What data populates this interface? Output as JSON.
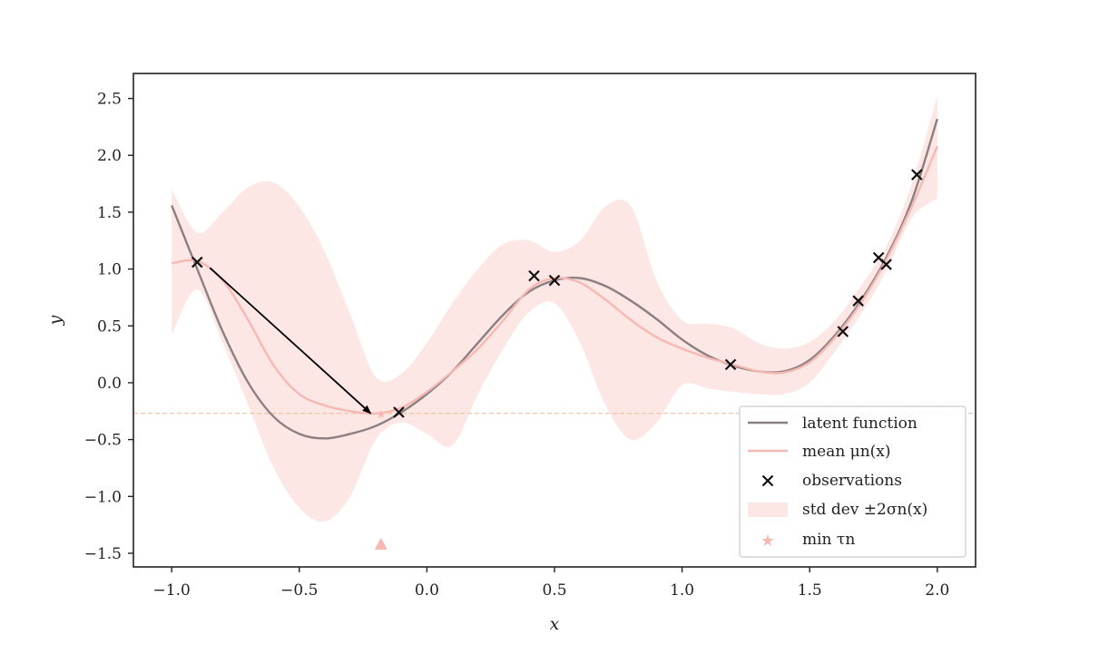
{
  "chart_data": {
    "type": "line",
    "title": "",
    "xlabel": "x",
    "ylabel": "y",
    "xlim": [
      -1.15,
      2.15
    ],
    "ylim": [
      -1.62,
      2.72
    ],
    "grid": false,
    "legend_position": "bottom-right",
    "x_ticks": [
      "−1.0",
      "−0.5",
      "0.0",
      "0.5",
      "1.0",
      "1.5",
      "2.0"
    ],
    "x_tick_values": [
      -1.0,
      -0.5,
      0.0,
      0.5,
      1.0,
      1.5,
      2.0
    ],
    "y_ticks": [
      "2.5",
      "2.0",
      "1.5",
      "1.0",
      "0.5",
      "0.0",
      "−0.5",
      "−1.0",
      "−1.5"
    ],
    "y_tick_values": [
      2.5,
      2.0,
      1.5,
      1.0,
      0.5,
      0.0,
      -0.5,
      -1.0,
      -1.5
    ],
    "x": [
      -1.0,
      -0.9,
      -0.8,
      -0.7,
      -0.6,
      -0.5,
      -0.4,
      -0.3,
      -0.2,
      -0.1,
      0.0,
      0.1,
      0.2,
      0.3,
      0.4,
      0.5,
      0.6,
      0.7,
      0.8,
      0.9,
      1.0,
      1.1,
      1.2,
      1.3,
      1.4,
      1.5,
      1.6,
      1.7,
      1.8,
      1.9,
      2.0
    ],
    "series": [
      {
        "name": "latent function",
        "color": "#8c7f82",
        "values": [
          1.56,
          1.0,
          0.45,
          0.0,
          -0.3,
          -0.45,
          -0.49,
          -0.45,
          -0.38,
          -0.26,
          -0.1,
          0.1,
          0.35,
          0.6,
          0.8,
          0.9,
          0.92,
          0.85,
          0.72,
          0.56,
          0.38,
          0.24,
          0.15,
          0.1,
          0.1,
          0.2,
          0.42,
          0.72,
          1.1,
          1.6,
          2.32
        ]
      },
      {
        "name": "mean μn(x)",
        "color": "#f6b8b2",
        "values": [
          1.05,
          1.07,
          0.9,
          0.55,
          0.15,
          -0.1,
          -0.2,
          -0.25,
          -0.27,
          -0.22,
          -0.08,
          0.1,
          0.3,
          0.55,
          0.82,
          0.92,
          0.88,
          0.73,
          0.55,
          0.4,
          0.3,
          0.22,
          0.16,
          0.1,
          0.09,
          0.18,
          0.4,
          0.7,
          1.08,
          1.55,
          2.08
        ]
      }
    ],
    "band": {
      "name": "std dev ±2σn(x)",
      "color": "#fde7e5",
      "lower": [
        0.42,
        0.82,
        0.35,
        -0.2,
        -0.75,
        -1.1,
        -1.22,
        -1.0,
        -0.5,
        -0.35,
        -0.45,
        -0.55,
        -0.1,
        0.3,
        0.62,
        0.7,
        0.35,
        -0.2,
        -0.5,
        -0.35,
        -0.02,
        -0.05,
        -0.08,
        -0.1,
        -0.1,
        0.0,
        0.28,
        0.6,
        0.98,
        1.45,
        1.62
      ],
      "upper": [
        1.7,
        1.32,
        1.5,
        1.72,
        1.76,
        1.55,
        1.15,
        0.6,
        0.05,
        0.08,
        0.35,
        0.7,
        1.0,
        1.22,
        1.25,
        1.15,
        1.25,
        1.55,
        1.55,
        0.9,
        0.55,
        0.52,
        0.48,
        0.35,
        0.3,
        0.36,
        0.55,
        0.85,
        1.2,
        1.75,
        2.52
      ]
    },
    "observations": {
      "name": "observations",
      "color": "#111111",
      "x": [
        -0.9,
        -0.11,
        0.42,
        0.5,
        1.19,
        1.63,
        1.69,
        1.77,
        1.8,
        1.92
      ],
      "y": [
        1.06,
        -0.26,
        0.94,
        0.9,
        0.16,
        0.45,
        0.72,
        1.1,
        1.04,
        1.83
      ]
    },
    "min_tau": {
      "name": "min τn",
      "color": "#f6b8b2",
      "x": [
        -0.18
      ],
      "y": [
        -0.27
      ]
    },
    "hline": {
      "y": -0.27,
      "color": "#f4b58f"
    },
    "arrow": {
      "from": [
        -0.85,
        1.01
      ],
      "to": [
        -0.22,
        -0.27
      ],
      "color": "#000000"
    },
    "triangle_marker": {
      "x": -0.18,
      "y": -1.42,
      "color": "#f6b8b2"
    }
  }
}
